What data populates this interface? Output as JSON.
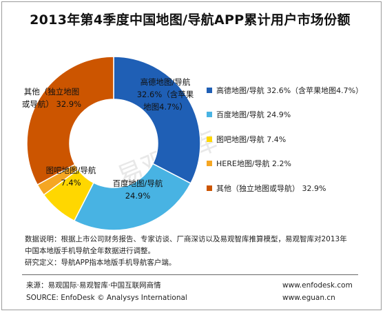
{
  "title": "2013年第4季度中国地图/导航APP累计用户市场份额",
  "watermark": "易观智库",
  "chart_data": {
    "type": "pie",
    "title": "2013年第4季度中国地图/导航APP累计用户市场份额",
    "donut": true,
    "legend_position": "right",
    "slices": [
      {
        "label": "高德地图/导航 32.6%（含苹果地图4.7%）",
        "value": 32.6,
        "color": "#1f5fb5",
        "data_label_lines": [
          "高德地图/导航",
          "32.6%（含苹果",
          "地图4.7%）"
        ]
      },
      {
        "label": "百度地图/导航 24.9%",
        "value": 24.9,
        "color": "#48b3e3",
        "data_label_lines": [
          "百度地图/导航",
          "24.9%"
        ]
      },
      {
        "label": "图吧地图/导航 7.4%",
        "value": 7.4,
        "color": "#ffd700",
        "data_label_lines": [
          "图吧地图/导航",
          "7.4%"
        ]
      },
      {
        "label": "HERE地图/导航 2.2%",
        "value": 2.2,
        "color": "#f5a623",
        "data_label_lines": []
      },
      {
        "label": "其他（独立地图或导航） 32.9%",
        "value": 32.9,
        "color": "#cc5500",
        "data_label_lines": [
          "其他（独立地图",
          "或导航） 32.9%"
        ]
      }
    ]
  },
  "notes": {
    "line1": "数据说明：根据上市公司财务报告、专家访谈、厂商深访以及易观智库推算模型，易观智库对2013年",
    "line2": "中国本地版手机导航全年数据进行调整。",
    "line3": "研究定义：导航APP指本地版手机导航客户端。"
  },
  "footer": {
    "source_cn": "来源：易观国际·易观智库·中国互联网商情",
    "source_en": "SOURCE: EnfoDesk © Analysys International",
    "url1": "www.enfodesk.com",
    "url2": "www.eguan.cn"
  }
}
